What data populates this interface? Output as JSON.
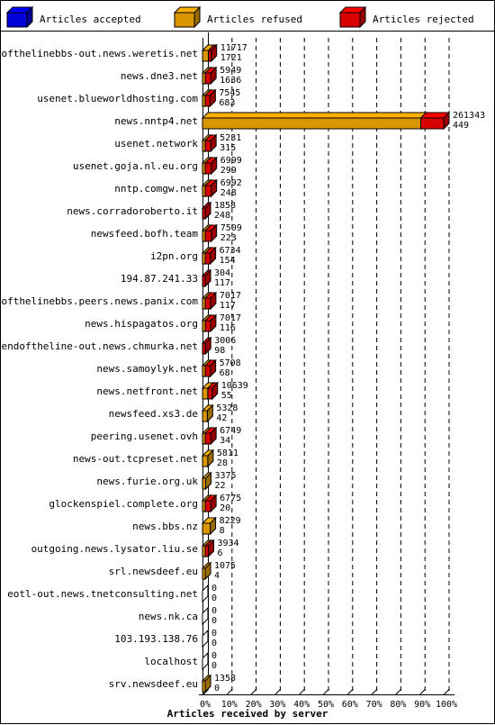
{
  "chart_data": {
    "type": "bar",
    "orientation": "horizontal",
    "stacked": true,
    "xlabel": "Articles received by server",
    "x_ticks": [
      "0%",
      "10%",
      "20%",
      "30%",
      "40%",
      "50%",
      "60%",
      "70%",
      "80%",
      "90%",
      "100%"
    ],
    "xlim": [
      0,
      100
    ],
    "legend_position": "top",
    "series": [
      {
        "name": "Articles accepted",
        "color": "#0000ff"
      },
      {
        "name": "Articles refused",
        "color": "#ffb000"
      },
      {
        "name": "Articles rejected",
        "color": "#ff0000"
      }
    ],
    "rows": [
      {
        "server": "endofthelinebbs-out.news.weretis.net",
        "top": "11717",
        "bottom": "1721",
        "accepted": 0,
        "refused": 2.5,
        "rejected": 0.7
      },
      {
        "server": "news.dne3.net",
        "top": "5949",
        "bottom": "1636",
        "accepted": 0,
        "refused": 0.6,
        "rejected": 2.3
      },
      {
        "server": "usenet.blueworldhosting.com",
        "top": "7545",
        "bottom": "683",
        "accepted": 0,
        "refused": 1.0,
        "rejected": 2.0
      },
      {
        "server": "news.nntp4.net",
        "top": "261343",
        "bottom": "449",
        "accepted": 0,
        "refused": 90.5,
        "rejected": 9.5
      },
      {
        "server": "usenet.network",
        "top": "5231",
        "bottom": "315",
        "accepted": 0,
        "refused": 0.3,
        "rejected": 2.3
      },
      {
        "server": "usenet.goja.nl.eu.org",
        "top": "6999",
        "bottom": "299",
        "accepted": 0,
        "refused": 0.4,
        "rejected": 2.5
      },
      {
        "server": "nntp.comgw.net",
        "top": "6992",
        "bottom": "248",
        "accepted": 0,
        "refused": 0.5,
        "rejected": 2.5
      },
      {
        "server": "news.corradoroberto.it",
        "top": "1858",
        "bottom": "248",
        "accepted": 0,
        "refused": 0,
        "rejected": 0.8
      },
      {
        "server": "newsfeed.bofh.team",
        "top": "7509",
        "bottom": "223",
        "accepted": 0,
        "refused": 0.6,
        "rejected": 2.5
      },
      {
        "server": "i2pn.org",
        "top": "6734",
        "bottom": "154",
        "accepted": 0,
        "refused": 0.6,
        "rejected": 2.1
      },
      {
        "server": "194.87.241.33",
        "top": "304",
        "bottom": "117",
        "accepted": 0,
        "refused": 0,
        "rejected": 0.3
      },
      {
        "server": "endofthelinebbs.peers.news.panix.com",
        "top": "7017",
        "bottom": "117",
        "accepted": 0,
        "refused": 0.5,
        "rejected": 2.2
      },
      {
        "server": "news.hispagatos.org",
        "top": "7017",
        "bottom": "116",
        "accepted": 0,
        "refused": 0.5,
        "rejected": 2.2
      },
      {
        "server": "endoftheline-out.news.chmurka.net",
        "top": "3006",
        "bottom": "98",
        "accepted": 0,
        "refused": 0,
        "rejected": 1.2
      },
      {
        "server": "news.samoylyk.net",
        "top": "5708",
        "bottom": "68",
        "accepted": 0,
        "refused": 0.3,
        "rejected": 2.1
      },
      {
        "server": "news.netfront.net",
        "top": "10639",
        "bottom": "55",
        "accepted": 0,
        "refused": 2.2,
        "rejected": 1.8
      },
      {
        "server": "newsfeed.xs3.de",
        "top": "5328",
        "bottom": "42",
        "accepted": 0,
        "refused": 2.0,
        "rejected": 0
      },
      {
        "server": "peering.usenet.ovh",
        "top": "6749",
        "bottom": "34",
        "accepted": 0,
        "refused": 0.3,
        "rejected": 2.3
      },
      {
        "server": "news-out.tcpreset.net",
        "top": "5811",
        "bottom": "28",
        "accepted": 0,
        "refused": 2.2,
        "rejected": 0
      },
      {
        "server": "news.furie.org.uk",
        "top": "3375",
        "bottom": "22",
        "accepted": 0,
        "refused": 1.3,
        "rejected": 0
      },
      {
        "server": "glockenspiel.complete.org",
        "top": "6775",
        "bottom": "20",
        "accepted": 0,
        "refused": 0.3,
        "rejected": 2.3
      },
      {
        "server": "news.bbs.nz",
        "top": "8229",
        "bottom": "8",
        "accepted": 0,
        "refused": 3.2,
        "rejected": 0
      },
      {
        "server": "outgoing.news.lysator.liu.se",
        "top": "3934",
        "bottom": "6",
        "accepted": 0,
        "refused": 0.3,
        "rejected": 1.3
      },
      {
        "server": "srl.newsdeef.eu",
        "top": "1075",
        "bottom": "4",
        "accepted": 0,
        "refused": 0.4,
        "rejected": 0
      },
      {
        "server": "eotl-out.news.tnetconsulting.net",
        "top": "0",
        "bottom": "0",
        "accepted": 0,
        "refused": 0,
        "rejected": 0
      },
      {
        "server": "news.nk.ca",
        "top": "0",
        "bottom": "0",
        "accepted": 0,
        "refused": 0,
        "rejected": 0
      },
      {
        "server": "103.193.138.76",
        "top": "0",
        "bottom": "0",
        "accepted": 0,
        "refused": 0,
        "rejected": 0
      },
      {
        "server": "localhost",
        "top": "0",
        "bottom": "0",
        "accepted": 0,
        "refused": 0,
        "rejected": 0
      },
      {
        "server": "srv.newsdeef.eu",
        "top": "1358",
        "bottom": "0",
        "accepted": 0,
        "refused": 0.5,
        "rejected": 0
      }
    ]
  }
}
